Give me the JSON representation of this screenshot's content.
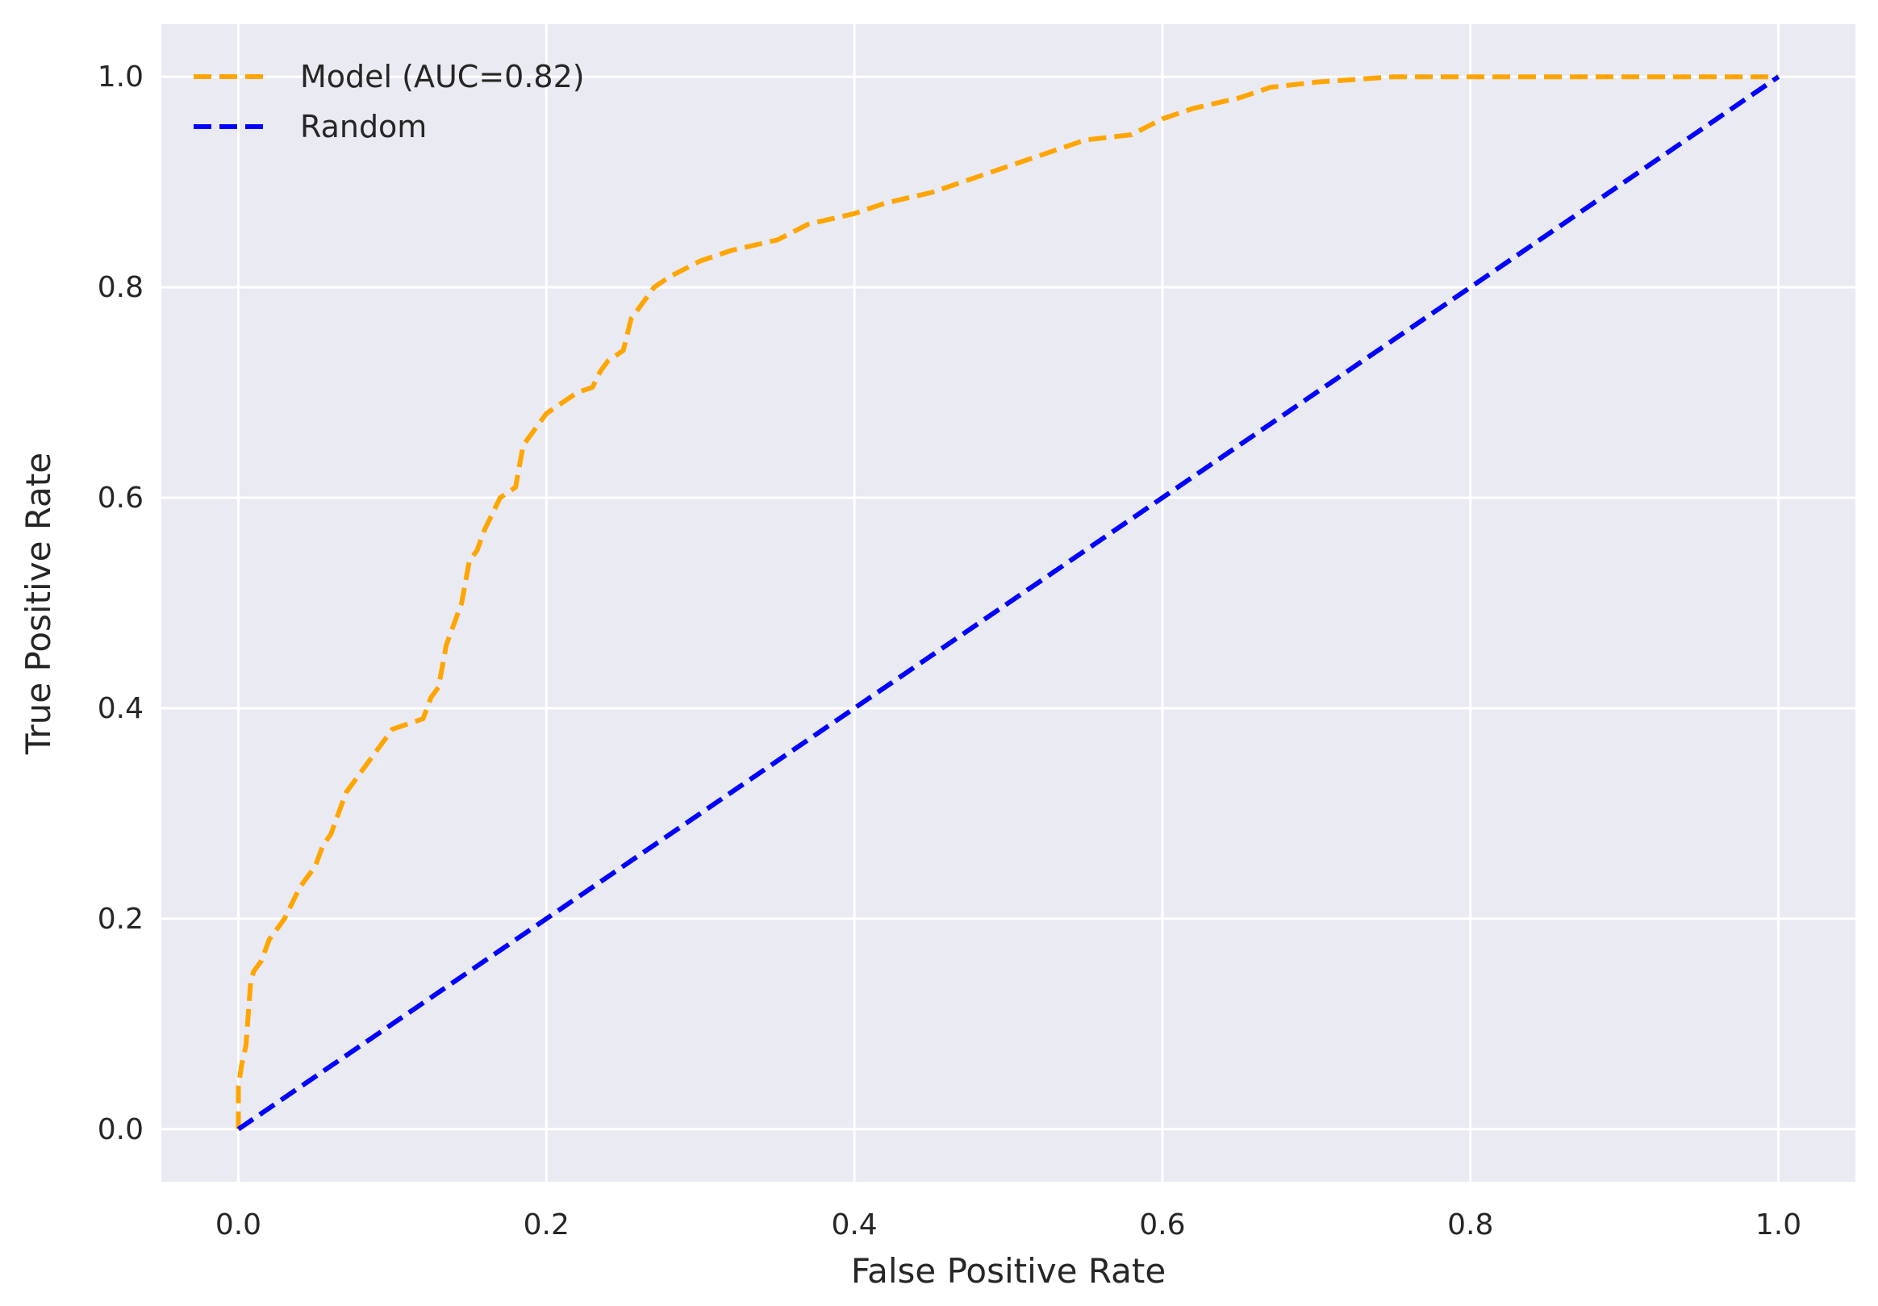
{
  "chart_data": {
    "type": "line",
    "xlabel": "False Positive Rate",
    "ylabel": "True Positive Rate",
    "xlim": [
      -0.05,
      1.05
    ],
    "ylim": [
      -0.05,
      1.05
    ],
    "xticks": [
      0.0,
      0.2,
      0.4,
      0.6,
      0.8,
      1.0
    ],
    "yticks": [
      0.0,
      0.2,
      0.4,
      0.6,
      0.8,
      1.0
    ],
    "xtick_labels": [
      "0.0",
      "0.2",
      "0.4",
      "0.6",
      "0.8",
      "1.0"
    ],
    "ytick_labels": [
      "0.0",
      "0.2",
      "0.4",
      "0.6",
      "0.8",
      "1.0"
    ],
    "grid": true,
    "background_color": "#EAEAF2",
    "grid_color": "#FFFFFF",
    "legend_position": "top-left",
    "series": [
      {
        "name": "Model (AUC=0.82)",
        "color": "#FFA500",
        "line_style": "dashed",
        "x": [
          0.0,
          0.0,
          0.002,
          0.005,
          0.008,
          0.01,
          0.015,
          0.02,
          0.025,
          0.03,
          0.04,
          0.045,
          0.05,
          0.055,
          0.06,
          0.065,
          0.07,
          0.075,
          0.08,
          0.09,
          0.1,
          0.11,
          0.12,
          0.125,
          0.13,
          0.135,
          0.14,
          0.145,
          0.15,
          0.155,
          0.16,
          0.17,
          0.18,
          0.185,
          0.19,
          0.2,
          0.21,
          0.22,
          0.23,
          0.235,
          0.24,
          0.25,
          0.255,
          0.26,
          0.27,
          0.28,
          0.3,
          0.32,
          0.35,
          0.37,
          0.4,
          0.42,
          0.45,
          0.47,
          0.5,
          0.52,
          0.55,
          0.58,
          0.6,
          0.62,
          0.65,
          0.67,
          0.7,
          0.75,
          0.8,
          0.9,
          1.0
        ],
        "y": [
          0.0,
          0.04,
          0.06,
          0.08,
          0.14,
          0.15,
          0.16,
          0.18,
          0.19,
          0.2,
          0.23,
          0.24,
          0.25,
          0.27,
          0.28,
          0.3,
          0.32,
          0.33,
          0.34,
          0.36,
          0.38,
          0.385,
          0.39,
          0.41,
          0.42,
          0.46,
          0.48,
          0.5,
          0.54,
          0.55,
          0.57,
          0.6,
          0.61,
          0.65,
          0.66,
          0.68,
          0.69,
          0.7,
          0.705,
          0.72,
          0.73,
          0.74,
          0.77,
          0.78,
          0.8,
          0.81,
          0.825,
          0.835,
          0.845,
          0.86,
          0.87,
          0.88,
          0.89,
          0.9,
          0.915,
          0.925,
          0.94,
          0.945,
          0.96,
          0.97,
          0.98,
          0.99,
          0.995,
          1.0,
          1.0,
          1.0,
          1.0
        ]
      },
      {
        "name": "Random",
        "color": "#0000FF",
        "line_style": "dashed",
        "x": [
          0.0,
          1.0
        ],
        "y": [
          0.0,
          1.0
        ]
      }
    ]
  }
}
